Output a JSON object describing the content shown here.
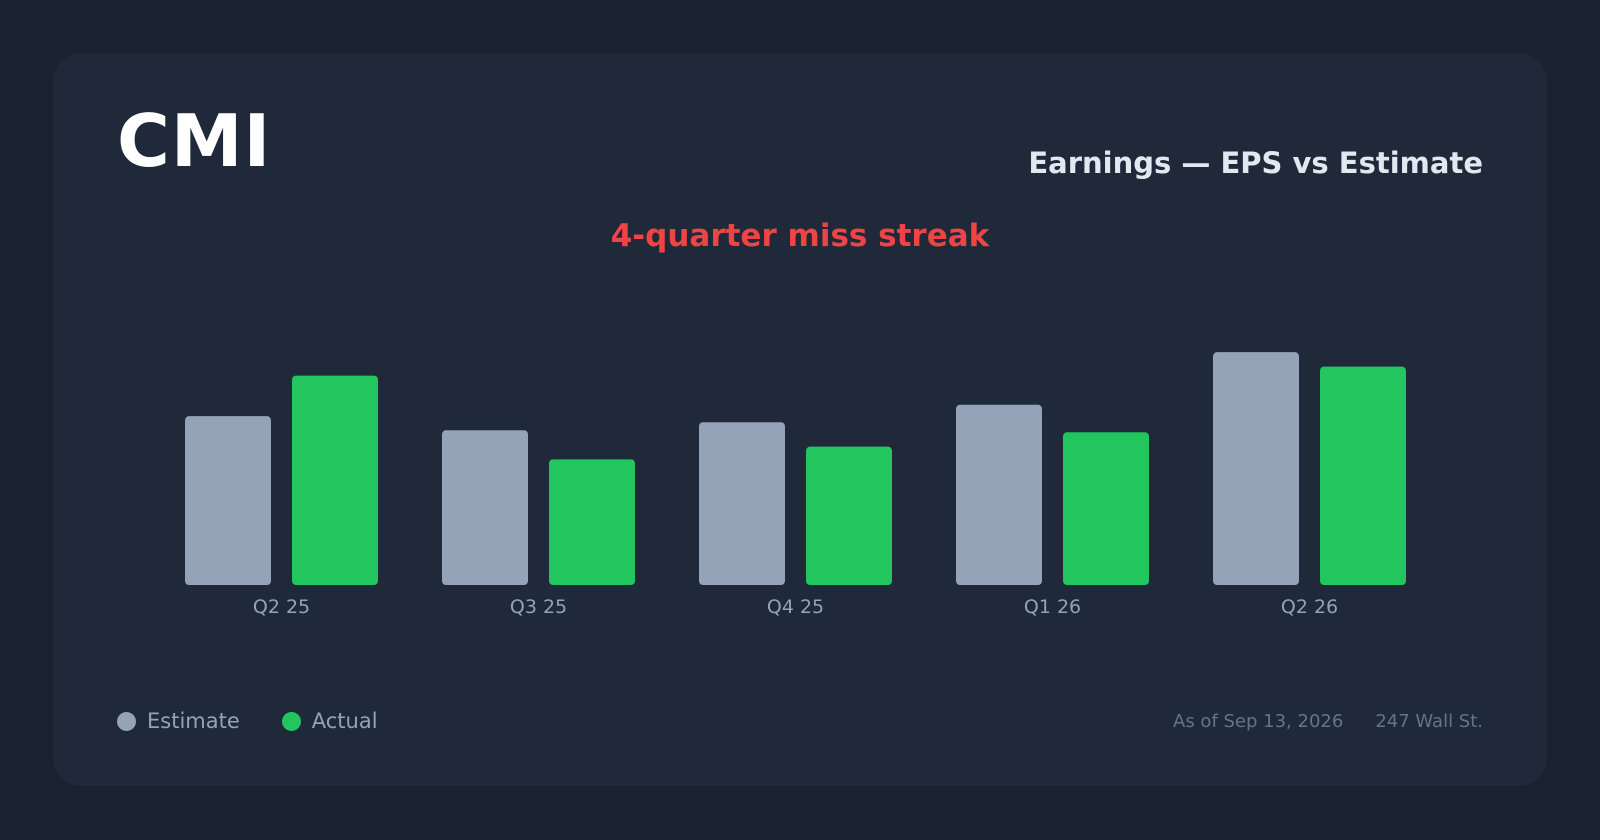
{
  "header": {
    "ticker": "CMI",
    "subtitle": "Earnings — EPS vs Estimate",
    "streak_label": "4-quarter miss streak"
  },
  "legend": {
    "items": [
      {
        "label": "Estimate",
        "color": "#94a3b8"
      },
      {
        "label": "Actual",
        "color": "#22c55e"
      }
    ]
  },
  "footer": {
    "as_of": "As of Sep 13, 2026",
    "source": "247 Wall St."
  },
  "colors": {
    "estimate": "#94a3b8",
    "actual": "#22c55e",
    "miss": "#ef4444",
    "axis_label": "#94a3b8"
  },
  "chart_data": {
    "type": "bar",
    "categories": [
      "Q2 25",
      "Q3 25",
      "Q4 25",
      "Q1 26",
      "Q2 26"
    ],
    "series": [
      {
        "name": "Estimate",
        "values": [
          5.04,
          4.62,
          4.86,
          5.38,
          6.95
        ]
      },
      {
        "name": "Actual",
        "values": [
          6.25,
          3.75,
          4.13,
          4.56,
          6.52
        ]
      }
    ],
    "ylim": [
      0,
      8
    ],
    "grid": false,
    "legend_position": "bottom-left"
  }
}
